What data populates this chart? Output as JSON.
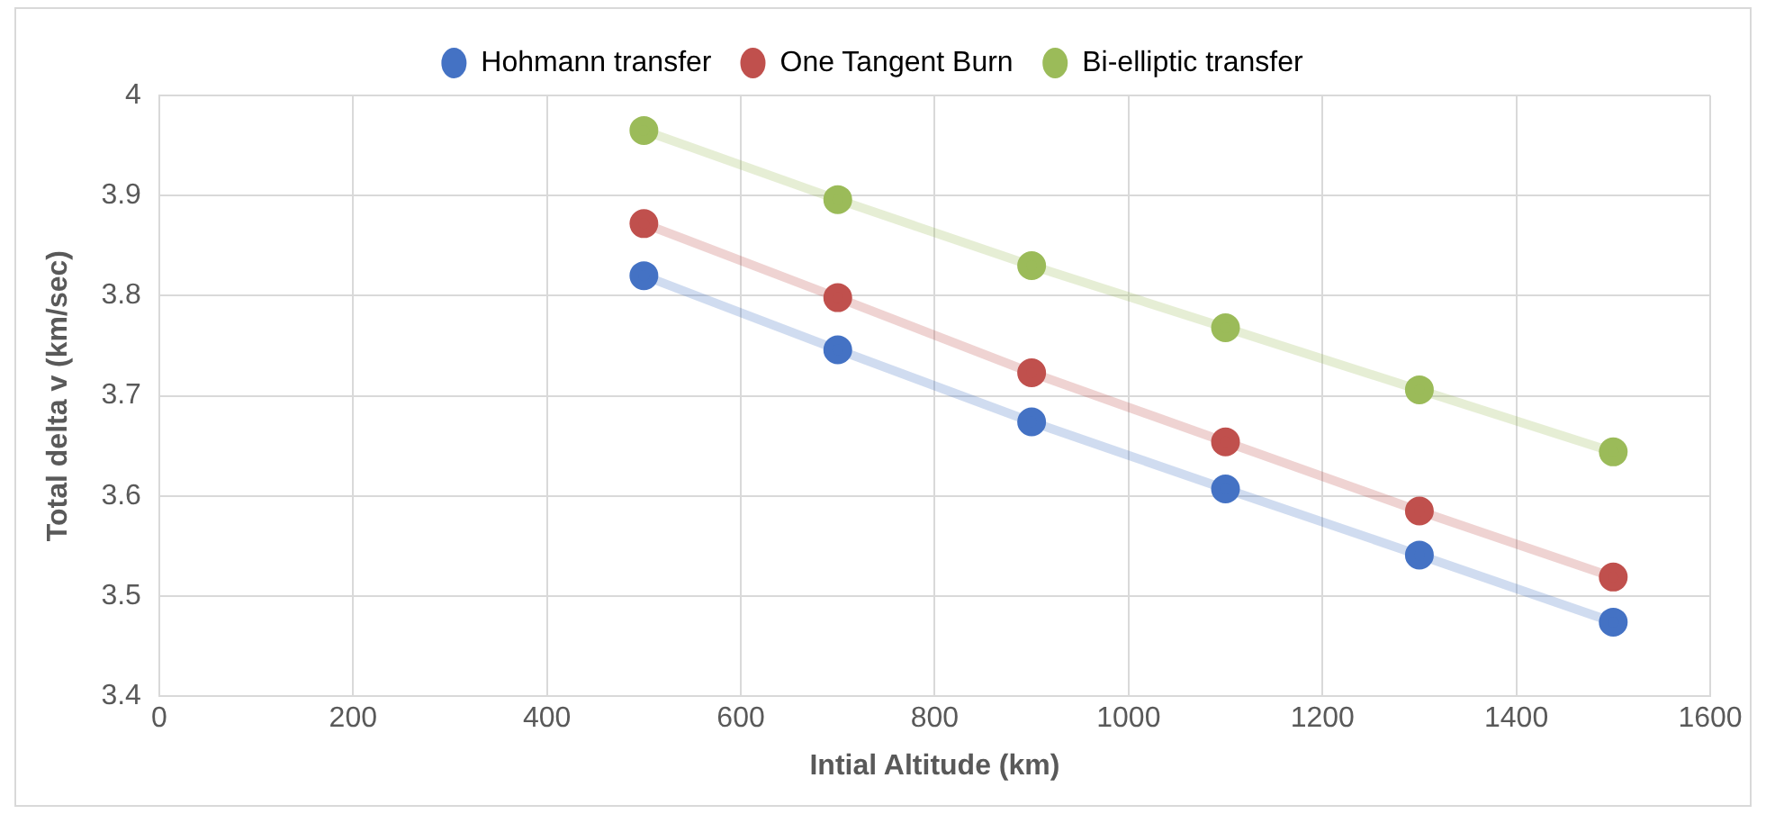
{
  "chart_data": {
    "type": "line",
    "xlabel": "Intial Altitude (km)",
    "ylabel": "Total delta v (km/sec)",
    "x": [
      500,
      700,
      900,
      1100,
      1300,
      1500
    ],
    "series": [
      {
        "name": "Hohmann transfer",
        "color": "#4472c4",
        "values": [
          3.82,
          3.746,
          3.674,
          3.607,
          3.541,
          3.474
        ]
      },
      {
        "name": "One Tangent Burn",
        "color": "#c0504d",
        "values": [
          3.872,
          3.798,
          3.723,
          3.654,
          3.585,
          3.519
        ]
      },
      {
        "name": "Bi-elliptic transfer",
        "color": "#9bbb59",
        "values": [
          3.965,
          3.896,
          3.83,
          3.768,
          3.706,
          3.644
        ]
      }
    ],
    "xlim": [
      0,
      1600
    ],
    "xticks": [
      0,
      200,
      400,
      600,
      800,
      1000,
      1200,
      1400,
      1600
    ],
    "ylim": [
      3.4,
      4
    ],
    "yticks": [
      3.4,
      3.5,
      3.6,
      3.7,
      3.8,
      3.9,
      4
    ],
    "grid": true,
    "legend": "top",
    "marker": "circle",
    "line_style": "solid"
  }
}
